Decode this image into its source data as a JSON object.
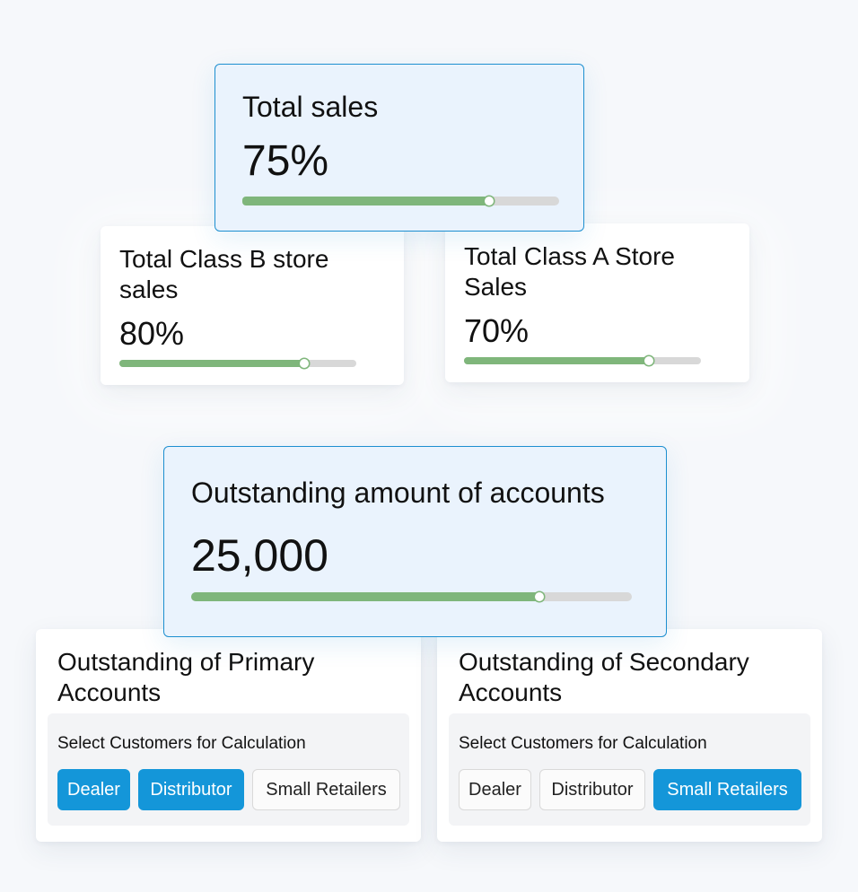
{
  "total_sales": {
    "title": "Total sales",
    "value": "75%",
    "progress": 0.78
  },
  "class_b": {
    "title_line1": "Total Class B store",
    "title_line2": "sales",
    "value": "80%",
    "progress": 0.78
  },
  "class_a": {
    "title_line1": "Total Class A Store",
    "title_line2": "Sales",
    "value": "70%",
    "progress": 0.78
  },
  "outstanding": {
    "title": "Outstanding amount of accounts",
    "value": "25,000",
    "progress": 0.79
  },
  "primary": {
    "title_line1": "Outstanding of Primary",
    "title_line2": "Accounts",
    "select_label": "Select Customers for Calculation",
    "options": [
      {
        "label": "Dealer",
        "selected": true
      },
      {
        "label": "Distributor",
        "selected": true
      },
      {
        "label": "Small Retailers",
        "selected": false
      }
    ]
  },
  "secondary": {
    "title_line1": "Outstanding of Secondary",
    "title_line2": "Accounts",
    "select_label": "Select Customers for Calculation",
    "options": [
      {
        "label": "Dealer",
        "selected": false
      },
      {
        "label": "Distributor",
        "selected": false
      },
      {
        "label": "Small Retailers",
        "selected": true
      }
    ]
  },
  "colors": {
    "accent": "#1496d9",
    "progress_fill": "#7fb67b",
    "progress_track": "#d8d8d8",
    "highlight_bg": "#eaf3fd"
  }
}
